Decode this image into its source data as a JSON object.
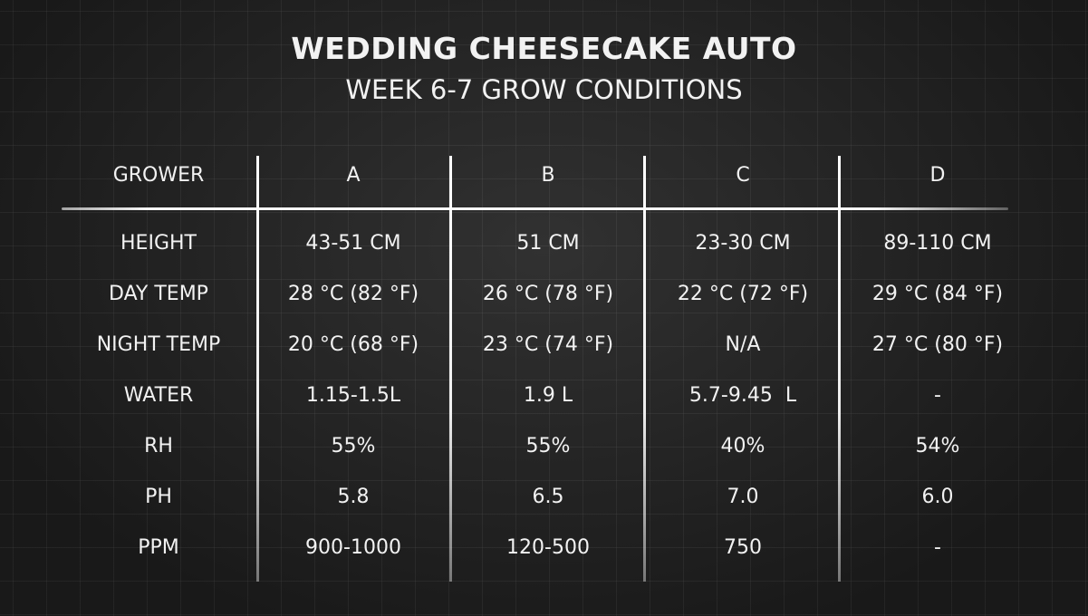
{
  "title": "WEDDING CHEESECAKE AUTO",
  "subtitle": "WEEK 6-7 GROW CONDITIONS",
  "table": {
    "header": [
      "GROWER",
      "A",
      "B",
      "C",
      "D"
    ],
    "rows": [
      [
        "HEIGHT",
        "43-51 CM",
        "51 CM",
        "23-30 CM",
        "89-110 CM"
      ],
      [
        "DAY TEMP",
        "28 °C (82 °F)",
        "26 °C (78 °F)",
        "22 °C (72 °F)",
        "29 °C (84 °F)"
      ],
      [
        "NIGHT TEMP",
        "20 °C (68 °F)",
        "23 °C (74 °F)",
        "N/A",
        "27 °C (80 °F)"
      ],
      [
        "WATER",
        "1.15-1.5L",
        "1.9 L",
        "5.7-9.45  L",
        "-"
      ],
      [
        "RH",
        "55%",
        "55%",
        "40%",
        "54%"
      ],
      [
        "PH",
        "5.8",
        "6.5",
        "7.0",
        "6.0"
      ],
      [
        "PPM",
        "900-1000",
        "120-500",
        "750",
        "-"
      ]
    ]
  }
}
